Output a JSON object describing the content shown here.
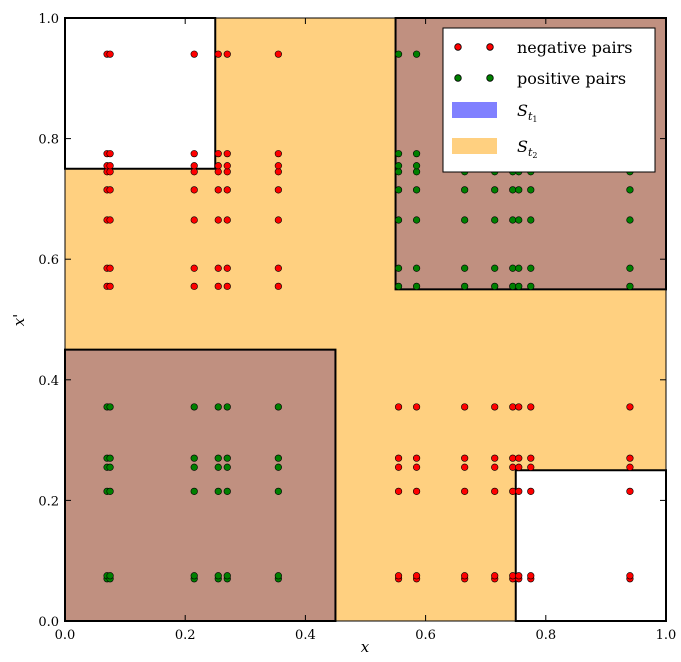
{
  "chart_data": {
    "type": "scatter",
    "xlabel": "x",
    "ylabel": "x'",
    "xlim": [
      0,
      1
    ],
    "ylim": [
      0,
      1
    ],
    "xticks": [
      "0.0",
      "0.2",
      "0.4",
      "0.6",
      "0.8",
      "1.0"
    ],
    "yticks": [
      "0.0",
      "0.2",
      "0.4",
      "0.6",
      "0.8",
      "1.0"
    ],
    "grid": false,
    "legend_position": "top-right",
    "colors": {
      "negative": "#ff0000",
      "positive": "#008000",
      "s_t1": "#8080ff",
      "s_t2": "#ffd080",
      "overlap": "#c09080"
    },
    "grid_values": [
      0.07,
      0.075,
      0.215,
      0.255,
      0.27,
      0.355,
      0.555,
      0.585,
      0.665,
      0.715,
      0.745,
      0.755,
      0.775,
      0.94
    ],
    "regions": {
      "s_t2": [
        {
          "x": [
            0.0,
            1.0
          ],
          "y": [
            0.0,
            1.0
          ]
        }
      ],
      "s_t2_excluded": [
        {
          "x": [
            0.0,
            0.25
          ],
          "y": [
            0.75,
            1.0
          ]
        },
        {
          "x": [
            0.75,
            1.0
          ],
          "y": [
            0.0,
            0.25
          ]
        }
      ],
      "overlap": [
        {
          "x": [
            0.0,
            0.45
          ],
          "y": [
            0.0,
            0.45
          ]
        },
        {
          "x": [
            0.55,
            1.0
          ],
          "y": [
            0.55,
            1.0
          ]
        }
      ]
    },
    "series": [
      {
        "name": "negative pairs",
        "marker": "circle",
        "color": "#ff0000"
      },
      {
        "name": "positive pairs",
        "marker": "circle",
        "color": "#008000"
      }
    ],
    "legend": {
      "negative": "negative pairs",
      "positive": "positive pairs",
      "s_t1_base": "S",
      "s_t1_sub": "t",
      "s_t1_subsub": "1",
      "s_t2_base": "S",
      "s_t2_sub": "t",
      "s_t2_subsub": "2"
    }
  }
}
